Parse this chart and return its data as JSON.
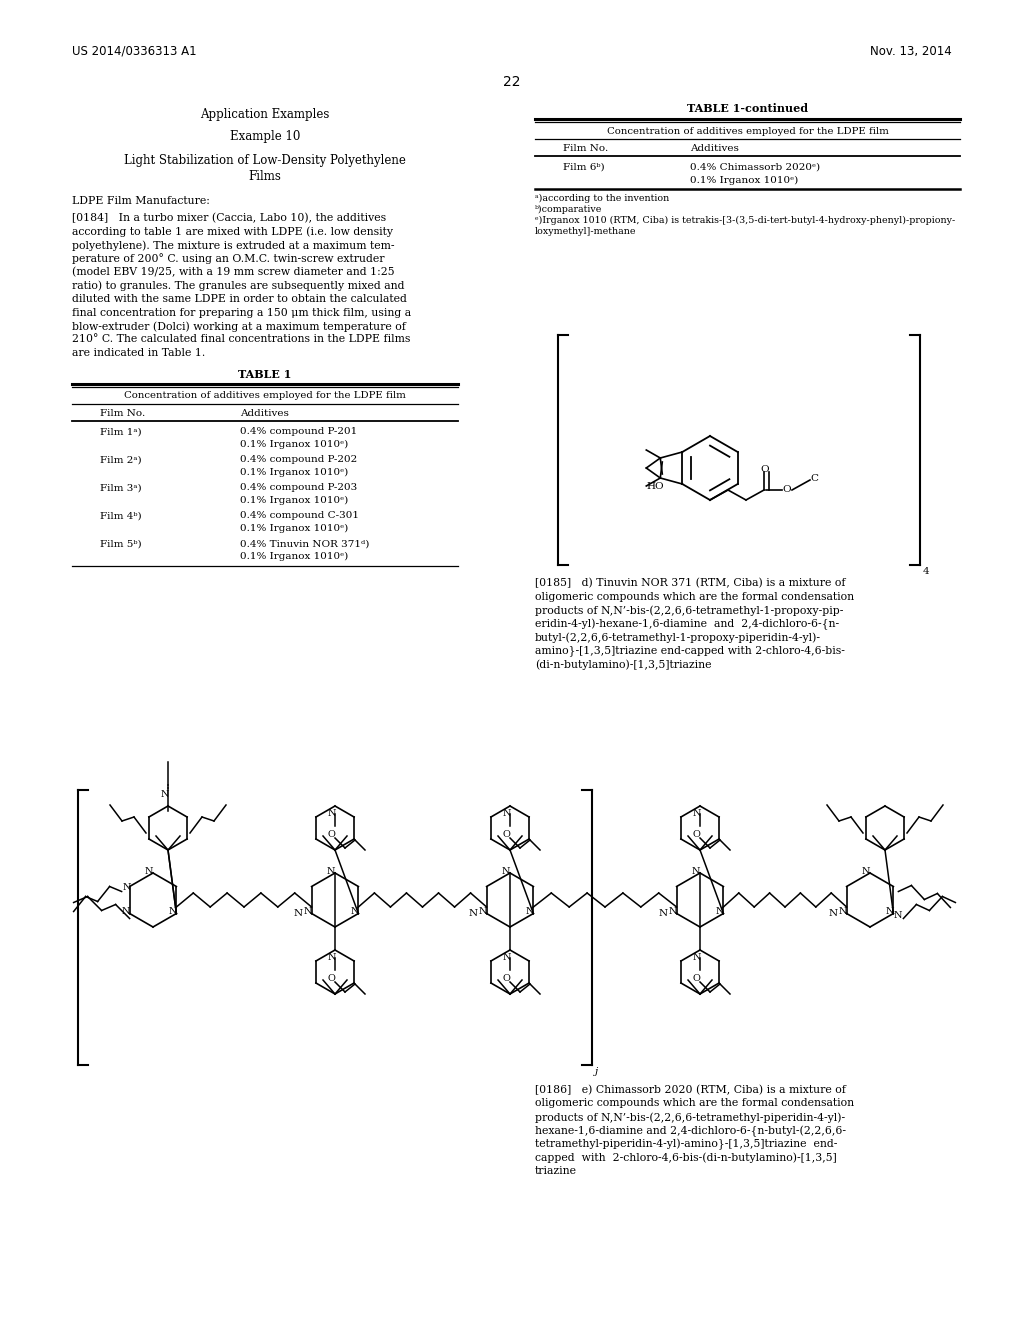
{
  "background_color": "#ffffff",
  "header_left": "US 2014/0336313 A1",
  "header_right": "Nov. 13, 2014",
  "page_number": "22",
  "title_center": "Application Examples",
  "subtitle": "Example 10",
  "table1_title": "TABLE 1",
  "table1_subtitle": "Concentration of additives employed for the LDPE film",
  "table1_col1": "Film No.",
  "table1_col2": "Additives",
  "table1_data": [
    [
      "Film 1ᵃ)",
      "0.4% compound P-201\n0.1% Irganox 1010ᵉ)"
    ],
    [
      "Film 2ᵃ)",
      "0.4% compound P-202\n0.1% Irganox 1010ᵉ)"
    ],
    [
      "Film 3ᵃ)",
      "0.4% compound P-203\n0.1% Irganox 1010ᵉ)"
    ],
    [
      "Film 4ᵇ)",
      "0.4% compound C-301\n0.1% Irganox 1010ᵉ)"
    ],
    [
      "Film 5ᵇ)",
      "0.4% Tinuvin NOR 371ᵈ)\n0.1% Irganox 1010ᵉ)"
    ]
  ],
  "table1cont_title": "TABLE 1-continued",
  "table1cont_subtitle": "Concentration of additives employed for the LDPE film",
  "table1cont_data": [
    [
      "Film 6ᵇ)",
      "0.4% Chimassorb 2020ᵉ)\n0.1% Irganox 1010ᵉ)"
    ]
  ],
  "p184_lines": [
    "[0184]   In a turbo mixer (Caccia, Labo 10), the additives",
    "according to table 1 are mixed with LDPE (i.e. low density",
    "polyethylene). The mixture is extruded at a maximum tem-",
    "perature of 200° C. using an O.M.C. twin-screw extruder",
    "(model EBV 19/25, with a 19 mm screw diameter and 1:25",
    "ratio) to granules. The granules are subsequently mixed and",
    "diluted with the same LDPE in order to obtain the calculated",
    "final concentration for preparing a 150 μm thick film, using a",
    "blow-extruder (Dolci) working at a maximum temperature of",
    "210° C. The calculated final concentrations in the LDPE films",
    "are indicated in Table 1."
  ],
  "fn_lines": [
    "ᵃ)according to the invention",
    "ᵇ)comparative",
    "ᵉ)Irganox 1010 (RTM, Ciba) is tetrakis-[3-(3,5-di-tert-butyl-4-hydroxy-phenyl)-propiony-",
    "loxymethyl]-methane"
  ],
  "p185_lines": [
    "[0185]   d) Tinuvin NOR 371 (RTM, Ciba) is a mixture of",
    "oligomeric compounds which are the formal condensation",
    "products of N,N’-bis-(2,2,6,6-tetramethyl-1-propoxy-pip-",
    "eridin-4-yl)-hexane-1,6-diamine  and  2,4-dichloro-6-{n-",
    "butyl-(2,2,6,6-tetramethyl-1-propoxy-piperidin-4-yl)-",
    "amino}-[1,3,5]triazine end-capped with 2-chloro-4,6-bis-",
    "(di-n-butylamino)-[1,3,5]triazine"
  ],
  "p186_lines": [
    "[0186]   e) Chimassorb 2020 (RTM, Ciba) is a mixture of",
    "oligomeric compounds which are the formal condensation",
    "products of N,N’-bis-(2,2,6,6-tetramethyl-piperidin-4-yl)-",
    "hexane-1,6-diamine and 2,4-dichloro-6-{n-butyl-(2,2,6,6-",
    "tetramethyl-piperidin-4-yl)-amino}-[1,3,5]triazine  end-",
    "capped  with  2-chloro-4,6-bis-(di-n-butylamino)-[1,3,5]",
    "triazine"
  ]
}
